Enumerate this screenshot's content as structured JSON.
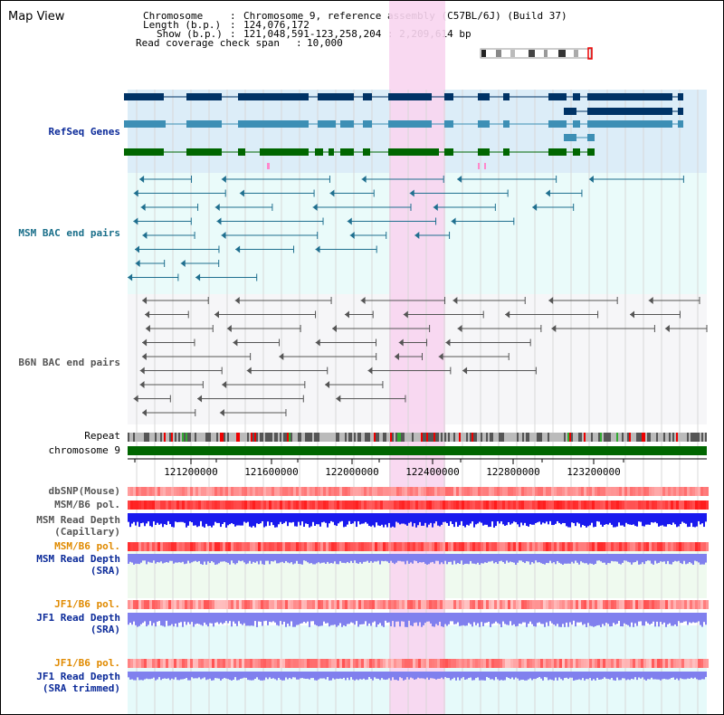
{
  "title": "Map View",
  "info": {
    "chromosome_key": "Chromosome",
    "chromosome_val": "Chromosome 9, reference assembly (C57BL/6J) (Build 37)",
    "length_key": "Length (b.p.)",
    "length_val": "124,076,172",
    "show_key": "Show (b.p.)",
    "show_val": "121,048,591-123,258,204 : 2,209,614 bp",
    "coverage_key": "Read coverage check span",
    "coverage_val": "10,000"
  },
  "tracks": {
    "refseq": "RefSeq Genes",
    "msm_bac": "MSM BAC end pairs",
    "b6n_bac": "B6N BAC end pairs",
    "repeat": "Repeat",
    "chromosome": "chromosome 9",
    "dbsnp": "dbSNP(Mouse)",
    "msm_b6_pol": "MSM/B6 pol.",
    "msm_depth_cap_1": "MSM Read Depth",
    "msm_depth_cap_2": "(Capillary)",
    "msm_b6_pol2": "MSM/B6 pol.",
    "msm_depth_sra_1": "MSM Read Depth",
    "msm_depth_sra_2": "(SRA)",
    "jf1_b6_pol": "JF1/B6 pol.",
    "jf1_depth_sra_1": "JF1 Read Depth",
    "jf1_depth_sra_2": "(SRA)",
    "jf1_b6_pol2": "JF1/B6 pol.",
    "jf1_depth_trim_1": "JF1 Read Depth",
    "jf1_depth_trim_2": "(SRA trimmed)"
  },
  "axis": {
    "ticks": [
      "121200000",
      "121600000",
      "122000000",
      "122400000",
      "122800000",
      "123200000"
    ]
  },
  "colors": {
    "refseq_dark": "#003366",
    "refseq_mid": "#3d8fb5",
    "refseq_green": "#006600",
    "msm_bac": "#1f6f8f",
    "b6n_bac": "#555555",
    "highlight": "#f8d5f0",
    "pol_red": "#ee2222",
    "capillary_blue": "#1a1aee",
    "sra_blue": "#8080ee"
  }
}
